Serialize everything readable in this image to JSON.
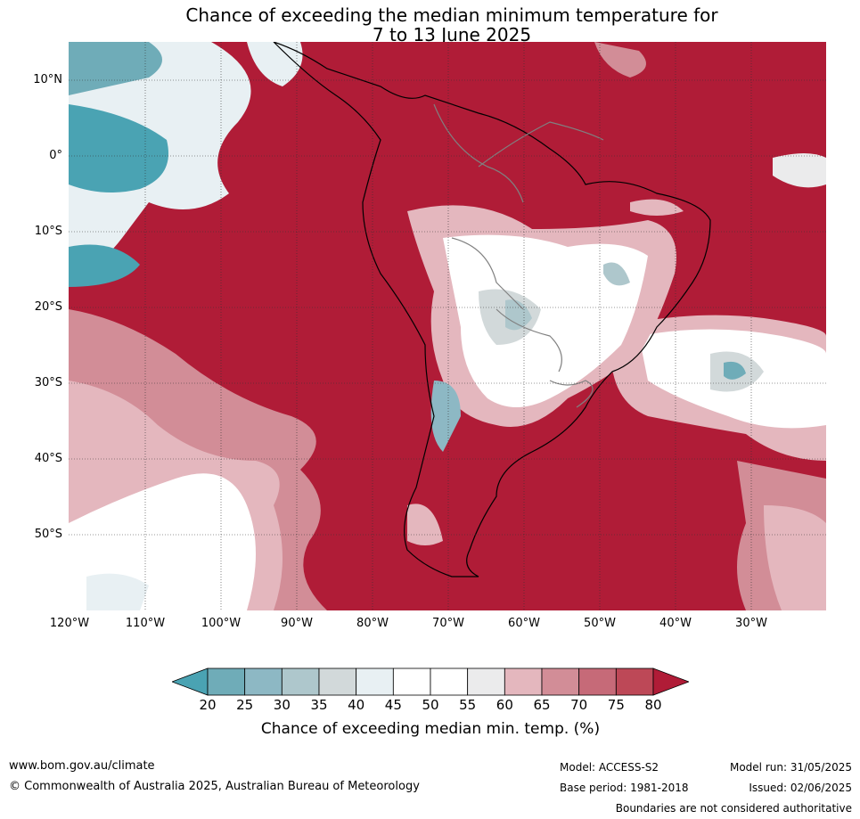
{
  "title": {
    "line1": "Chance of exceeding the median minimum temperature for",
    "line2": "7 to 13 June 2025"
  },
  "map": {
    "latitude_labels": [
      "10°N",
      "0°",
      "10°S",
      "20°S",
      "30°S",
      "40°S",
      "50°S"
    ],
    "longitude_labels": [
      "120°W",
      "110°W",
      "100°W",
      "90°W",
      "80°W",
      "70°W",
      "60°W",
      "50°W",
      "40°W",
      "30°W"
    ],
    "colors": {
      "land_outline": "#000000",
      "borders": "#808080",
      "gridlines": "#333333"
    }
  },
  "legend": {
    "tick_labels": [
      "20",
      "25",
      "30",
      "35",
      "40",
      "45",
      "50",
      "55",
      "60",
      "65",
      "70",
      "75",
      "80"
    ],
    "label": "Chance of exceeding median min. temp. (%)",
    "colors": [
      "#4aa3b3",
      "#6facb8",
      "#8db8c4",
      "#aec7cc",
      "#d2d9da",
      "#e8f0f3",
      "#ffffff",
      "#ffffff",
      "#ebebec",
      "#e4b7be",
      "#d28d97",
      "#c66a78",
      "#bd4857",
      "#b01c37"
    ]
  },
  "footer": {
    "website": "www.bom.gov.au/climate",
    "copyright": "© Commonwealth of Australia 2025, Australian Bureau of Meteorology",
    "model": "Model: ACCESS-S2",
    "base_period": "Base period: 1981-2018",
    "model_run": "Model run: 31/05/2025",
    "issued": "Issued: 02/06/2025",
    "disclaimer": "Boundaries are not considered authoritative"
  }
}
